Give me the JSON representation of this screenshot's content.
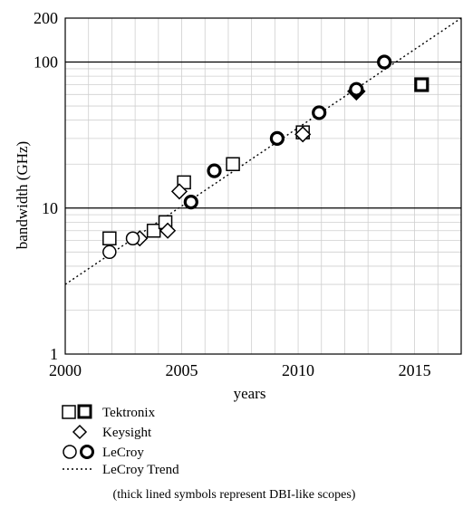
{
  "chart_data": {
    "type": "scatter",
    "xlabel": "years",
    "ylabel": "bandwidth (GHz)",
    "xlim": [
      2000,
      2017
    ],
    "ylim": [
      1,
      200
    ],
    "y_scale": "log",
    "grid": true,
    "x_ticks": [
      2000,
      2005,
      2010,
      2015
    ],
    "x_tick_labels": [
      "2000",
      "2005",
      "2010",
      "2015"
    ],
    "y_tick_labels": [
      {
        "value": 1,
        "label": "1"
      },
      {
        "value": 10,
        "label": "10"
      },
      {
        "value": 100,
        "label": "100"
      },
      {
        "value": 200,
        "label": "200"
      }
    ],
    "series": [
      {
        "name": "Tektronix",
        "marker": "square",
        "points": [
          {
            "x": 2001.9,
            "y": 6.2,
            "thick": false
          },
          {
            "x": 2003.8,
            "y": 7.0,
            "thick": false
          },
          {
            "x": 2004.3,
            "y": 8.0,
            "thick": false
          },
          {
            "x": 2005.1,
            "y": 15.0,
            "thick": false
          },
          {
            "x": 2007.2,
            "y": 20.0,
            "thick": false
          },
          {
            "x": 2010.2,
            "y": 33.0,
            "thick": false
          },
          {
            "x": 2015.3,
            "y": 70.0,
            "thick": true
          }
        ]
      },
      {
        "name": "Keysight",
        "marker": "diamond",
        "points": [
          {
            "x": 2003.2,
            "y": 6.2,
            "thick": false
          },
          {
            "x": 2004.4,
            "y": 7.0,
            "thick": false
          },
          {
            "x": 2004.9,
            "y": 13.0,
            "thick": false
          },
          {
            "x": 2010.2,
            "y": 32.0,
            "thick": false
          },
          {
            "x": 2012.5,
            "y": 63.0,
            "thick": true
          }
        ]
      },
      {
        "name": "LeCroy",
        "marker": "circle",
        "points": [
          {
            "x": 2001.9,
            "y": 5.0,
            "thick": false
          },
          {
            "x": 2002.9,
            "y": 6.2,
            "thick": false
          },
          {
            "x": 2005.4,
            "y": 11.0,
            "thick": true
          },
          {
            "x": 2006.4,
            "y": 18.0,
            "thick": true
          },
          {
            "x": 2009.1,
            "y": 30.0,
            "thick": true
          },
          {
            "x": 2010.9,
            "y": 45.0,
            "thick": true
          },
          {
            "x": 2012.5,
            "y": 65.0,
            "thick": true
          },
          {
            "x": 2013.7,
            "y": 100.0,
            "thick": true
          }
        ]
      }
    ],
    "trend": {
      "name": "LeCroy Trend",
      "style": "dotted",
      "x": [
        2000,
        2017
      ],
      "y": [
        3.0,
        200.0
      ]
    },
    "legend": {
      "placement": "below",
      "entries": [
        {
          "marker": "square-pair",
          "label": "Tektronix"
        },
        {
          "marker": "diamond",
          "label": "Keysight"
        },
        {
          "marker": "circle-pair",
          "label": "LeCroy"
        },
        {
          "marker": "dotted-line",
          "label": "LeCroy Trend"
        }
      ]
    },
    "note": "(thick lined symbols represent DBI-like scopes)"
  }
}
